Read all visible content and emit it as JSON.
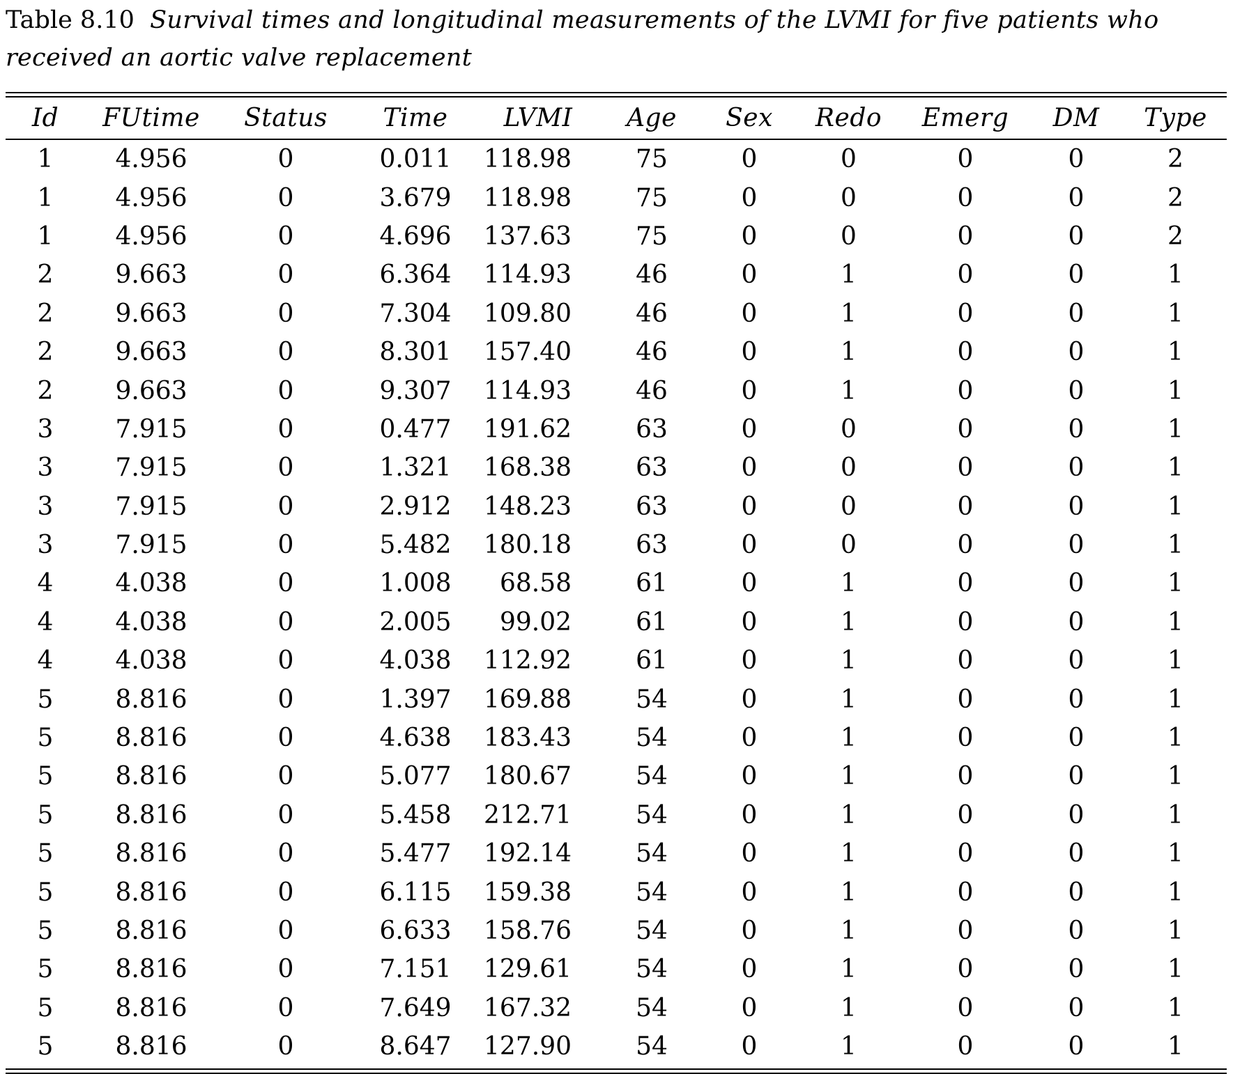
{
  "caption": {
    "label": "Table 8.10",
    "text": "Survival times and longitudinal measurements of the LVMI for five patients who received an aortic valve replacement"
  },
  "columns": [
    "Id",
    "FUtime",
    "Status",
    "Time",
    "LVMI",
    "Age",
    "Sex",
    "Redo",
    "Emerg",
    "DM",
    "Type"
  ],
  "rows": [
    [
      "1",
      "4.956",
      "0",
      "0.011",
      "118.98",
      "75",
      "0",
      "0",
      "0",
      "0",
      "2"
    ],
    [
      "1",
      "4.956",
      "0",
      "3.679",
      "118.98",
      "75",
      "0",
      "0",
      "0",
      "0",
      "2"
    ],
    [
      "1",
      "4.956",
      "0",
      "4.696",
      "137.63",
      "75",
      "0",
      "0",
      "0",
      "0",
      "2"
    ],
    [
      "2",
      "9.663",
      "0",
      "6.364",
      "114.93",
      "46",
      "0",
      "1",
      "0",
      "0",
      "1"
    ],
    [
      "2",
      "9.663",
      "0",
      "7.304",
      "109.80",
      "46",
      "0",
      "1",
      "0",
      "0",
      "1"
    ],
    [
      "2",
      "9.663",
      "0",
      "8.301",
      "157.40",
      "46",
      "0",
      "1",
      "0",
      "0",
      "1"
    ],
    [
      "2",
      "9.663",
      "0",
      "9.307",
      "114.93",
      "46",
      "0",
      "1",
      "0",
      "0",
      "1"
    ],
    [
      "3",
      "7.915",
      "0",
      "0.477",
      "191.62",
      "63",
      "0",
      "0",
      "0",
      "0",
      "1"
    ],
    [
      "3",
      "7.915",
      "0",
      "1.321",
      "168.38",
      "63",
      "0",
      "0",
      "0",
      "0",
      "1"
    ],
    [
      "3",
      "7.915",
      "0",
      "2.912",
      "148.23",
      "63",
      "0",
      "0",
      "0",
      "0",
      "1"
    ],
    [
      "3",
      "7.915",
      "0",
      "5.482",
      "180.18",
      "63",
      "0",
      "0",
      "0",
      "0",
      "1"
    ],
    [
      "4",
      "4.038",
      "0",
      "1.008",
      "68.58",
      "61",
      "0",
      "1",
      "0",
      "0",
      "1"
    ],
    [
      "4",
      "4.038",
      "0",
      "2.005",
      "99.02",
      "61",
      "0",
      "1",
      "0",
      "0",
      "1"
    ],
    [
      "4",
      "4.038",
      "0",
      "4.038",
      "112.92",
      "61",
      "0",
      "1",
      "0",
      "0",
      "1"
    ],
    [
      "5",
      "8.816",
      "0",
      "1.397",
      "169.88",
      "54",
      "0",
      "1",
      "0",
      "0",
      "1"
    ],
    [
      "5",
      "8.816",
      "0",
      "4.638",
      "183.43",
      "54",
      "0",
      "1",
      "0",
      "0",
      "1"
    ],
    [
      "5",
      "8.816",
      "0",
      "5.077",
      "180.67",
      "54",
      "0",
      "1",
      "0",
      "0",
      "1"
    ],
    [
      "5",
      "8.816",
      "0",
      "5.458",
      "212.71",
      "54",
      "0",
      "1",
      "0",
      "0",
      "1"
    ],
    [
      "5",
      "8.816",
      "0",
      "5.477",
      "192.14",
      "54",
      "0",
      "1",
      "0",
      "0",
      "1"
    ],
    [
      "5",
      "8.816",
      "0",
      "6.115",
      "159.38",
      "54",
      "0",
      "1",
      "0",
      "0",
      "1"
    ],
    [
      "5",
      "8.816",
      "0",
      "6.633",
      "158.76",
      "54",
      "0",
      "1",
      "0",
      "0",
      "1"
    ],
    [
      "5",
      "8.816",
      "0",
      "7.151",
      "129.61",
      "54",
      "0",
      "1",
      "0",
      "0",
      "1"
    ],
    [
      "5",
      "8.816",
      "0",
      "7.649",
      "167.32",
      "54",
      "0",
      "1",
      "0",
      "0",
      "1"
    ],
    [
      "5",
      "8.816",
      "0",
      "8.647",
      "127.90",
      "54",
      "0",
      "1",
      "0",
      "0",
      "1"
    ]
  ]
}
